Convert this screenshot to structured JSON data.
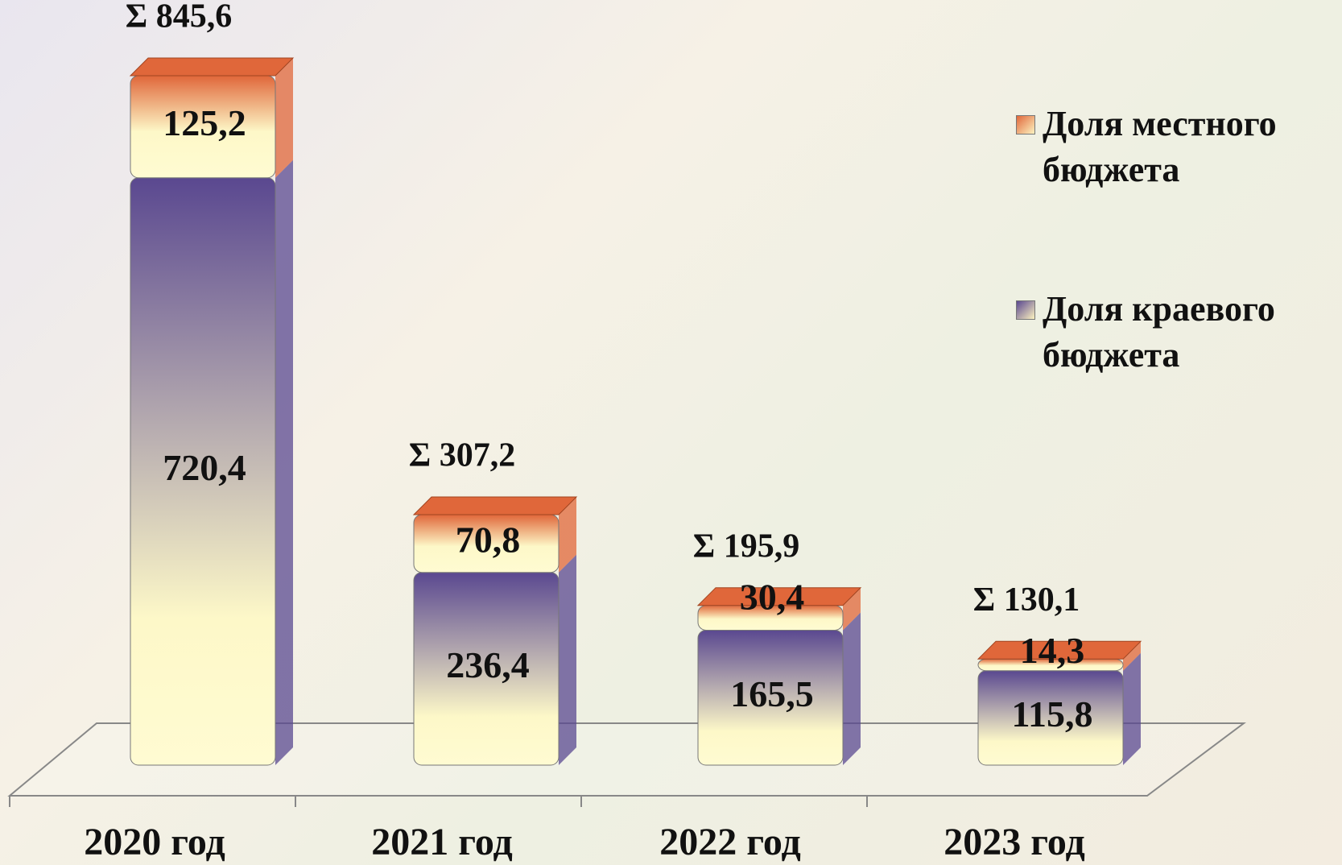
{
  "chart_data": {
    "type": "bar3d_stacked",
    "categories": [
      "2020 год",
      "2021 год",
      "2022 год",
      "2023 год"
    ],
    "series": [
      {
        "name": "Доля местного бюджета",
        "color": "#e0673a",
        "values": [
          125.2,
          70.8,
          30.4,
          14.3
        ],
        "value_labels": [
          "125,2",
          "70,8",
          "30,4",
          "14,3"
        ]
      },
      {
        "name": "Доля краевого бюджета",
        "color": "#5a4890",
        "values": [
          720.4,
          236.4,
          165.5,
          115.8
        ],
        "value_labels": [
          "720,4",
          "236,4",
          "165,5",
          "115,8"
        ]
      }
    ],
    "total_labels": [
      "Σ 845,6",
      "Σ 307,2",
      "Σ  195,9",
      "Σ 130,1"
    ],
    "legend": "right"
  }
}
